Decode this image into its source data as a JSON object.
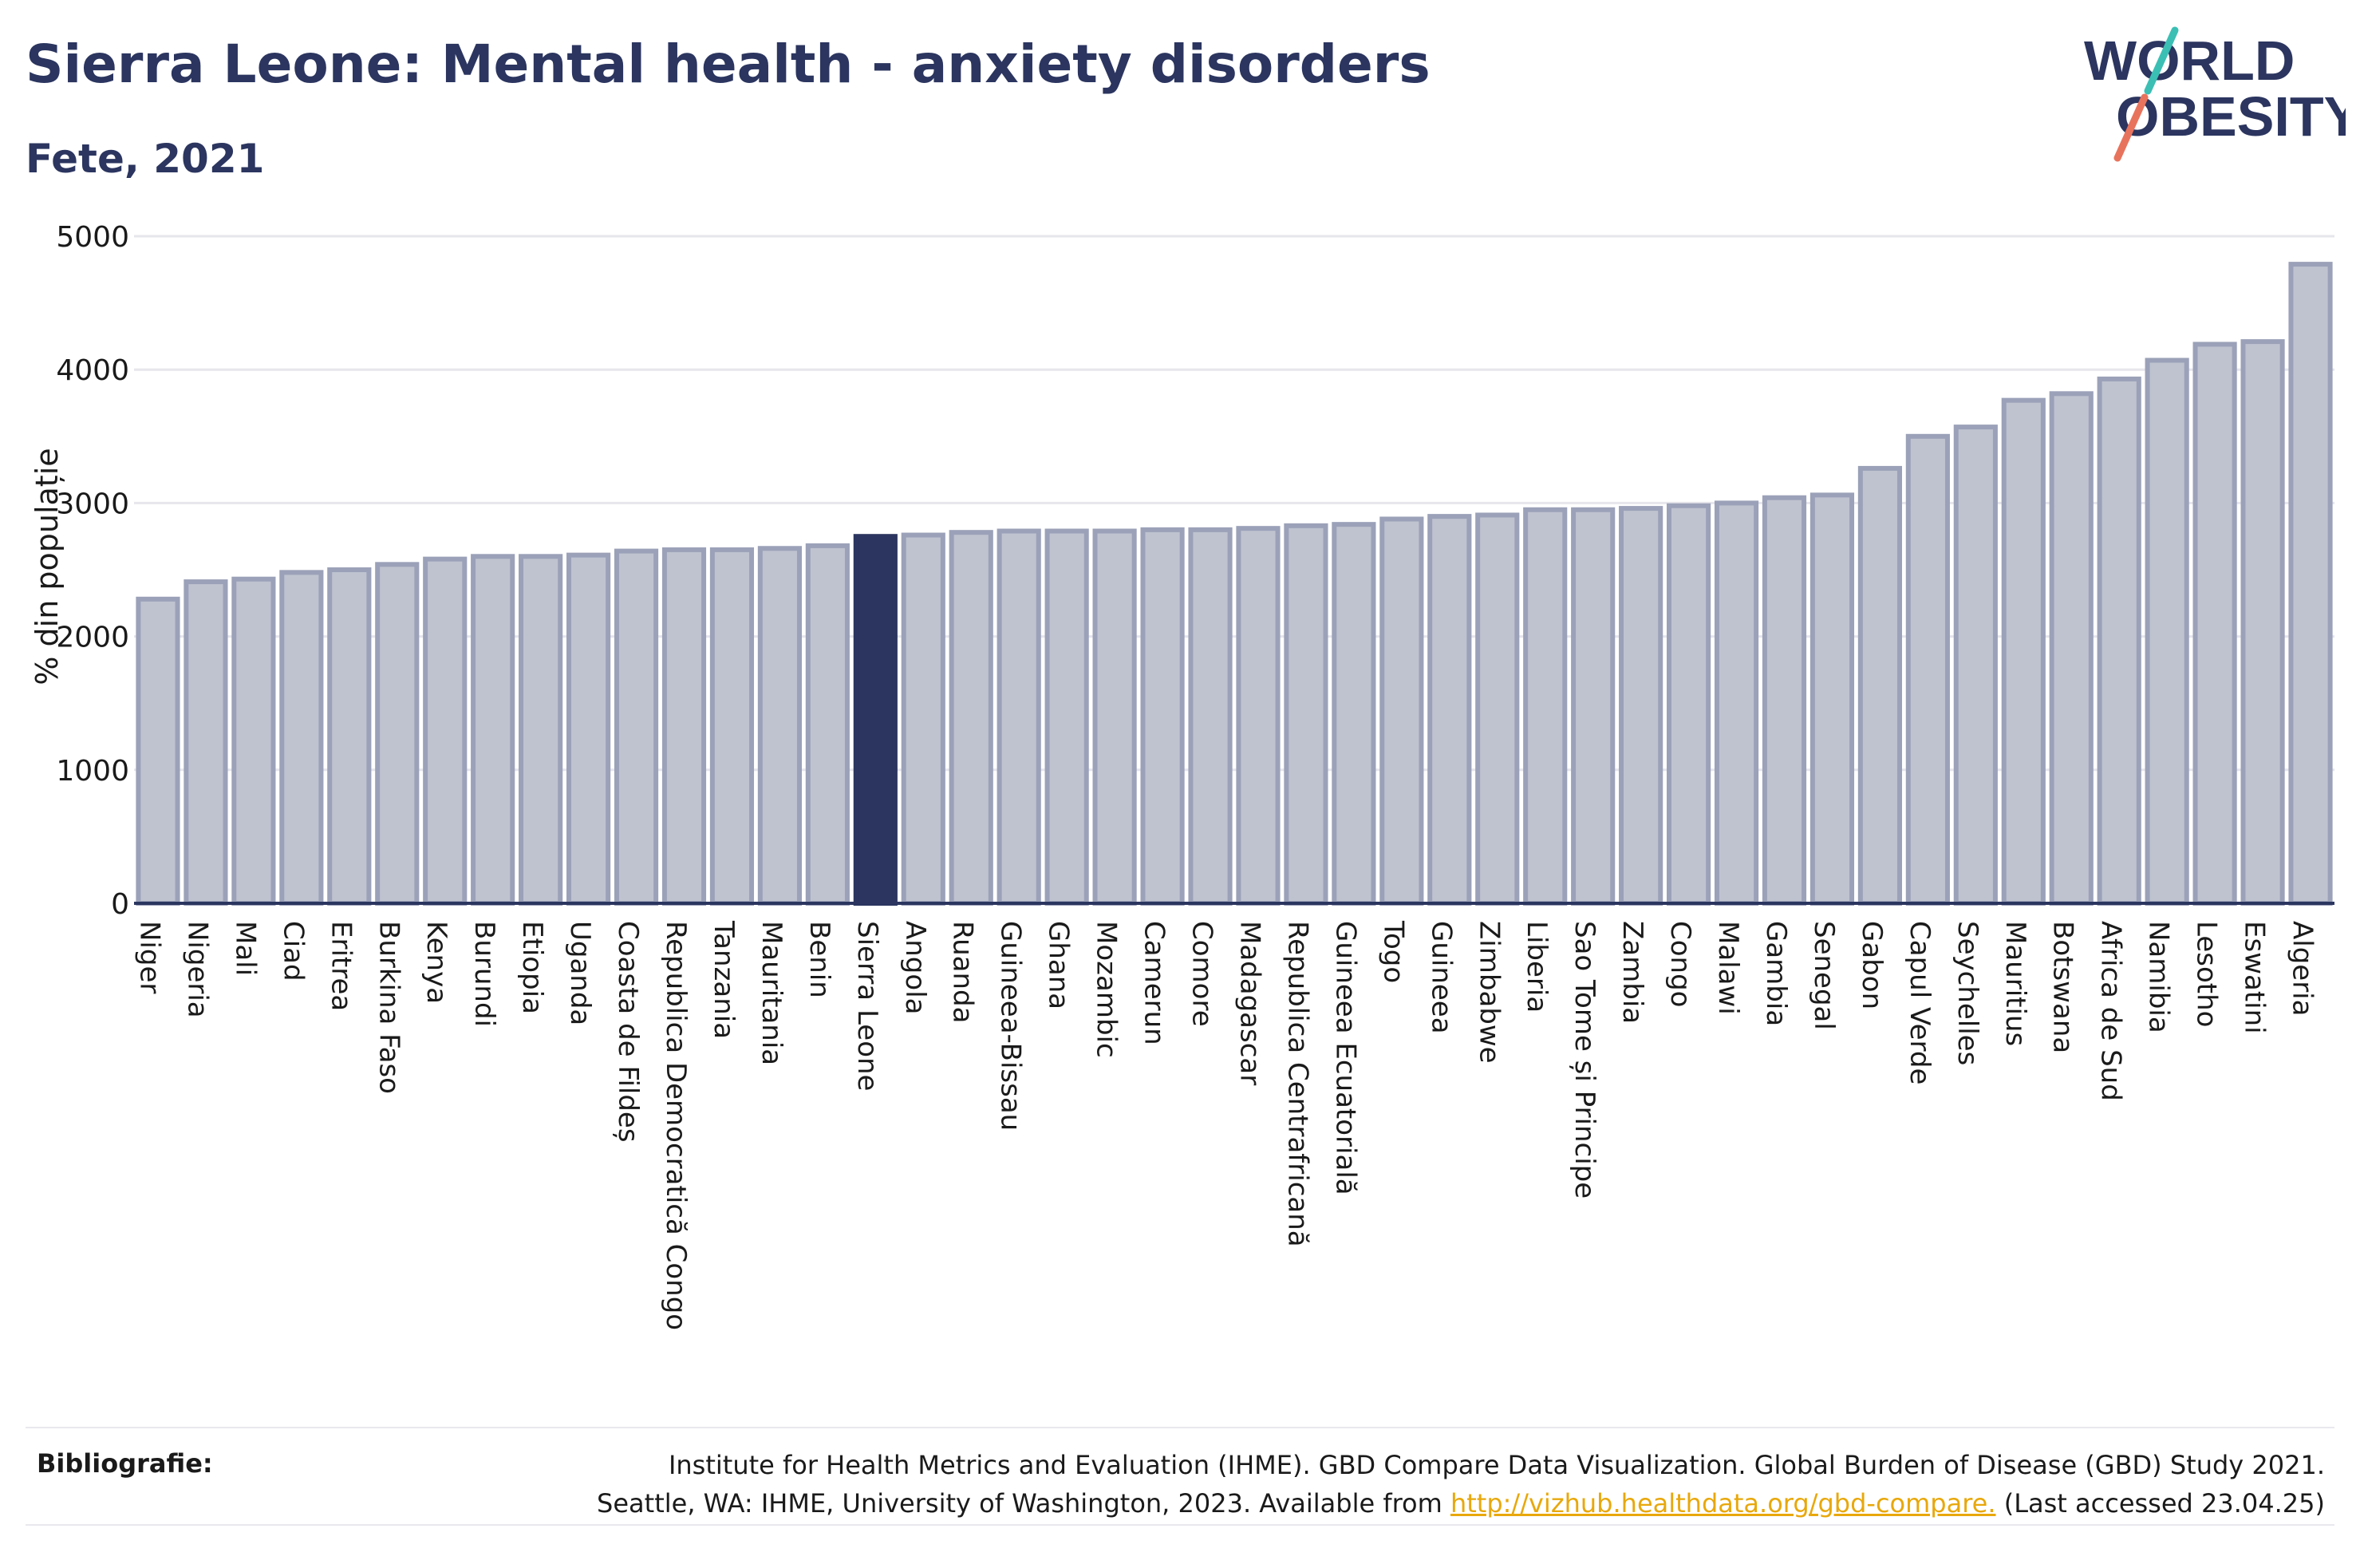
{
  "header": {
    "title": "Sierra Leone: Mental health - anxiety disorders",
    "subtitle": "Fete, 2021"
  },
  "logo": {
    "line1": "WORLD",
    "line2": "OBESITY",
    "colors": {
      "text": "#2b355f",
      "slash_top": "#3bbfb4",
      "slash_bottom": "#e8735c"
    }
  },
  "footer": {
    "label": "Bibliografie:",
    "line1": "Institute for Health Metrics and Evaluation (IHME). GBD Compare Data Visualization. Global Burden of Disease (GBD) Study 2021.",
    "line2_prefix": "Seattle, WA: IHME, University of Washington, 2023. Available from",
    "link": "http://vizhub.healthdata.org/gbd-compare.",
    "line2_suffix": "(Last accessed 23.04.25)"
  },
  "chart_data": {
    "type": "bar",
    "ylabel": "% din populație",
    "ylim": [
      0,
      5000
    ],
    "yticks": [
      0,
      1000,
      2000,
      3000,
      4000,
      5000
    ],
    "grid": true,
    "highlight": "Sierra Leone",
    "colors": {
      "bar": "#bfc3d0",
      "bar_edge": "#9ba1b8",
      "highlight": "#2b355f",
      "axis": "#2b355f",
      "grid": "#e6e6ec"
    },
    "categories": [
      "Niger",
      "Nigeria",
      "Mali",
      "Ciad",
      "Eritrea",
      "Burkina Faso",
      "Kenya",
      "Burundi",
      "Etiopia",
      "Uganda",
      "Coasta de Fildeș",
      "Republica Democratică Congo",
      "Tanzania",
      "Mauritania",
      "Benin",
      "Sierra Leone",
      "Angola",
      "Ruanda",
      "Guineea-Bissau",
      "Ghana",
      "Mozambic",
      "Camerun",
      "Comore",
      "Madagascar",
      "Republica Centrafricană",
      "Guineea Ecuatorială",
      "Togo",
      "Guineea",
      "Zimbabwe",
      "Liberia",
      "Sao Tome și Principe",
      "Zambia",
      "Congo",
      "Malawi",
      "Gambia",
      "Senegal",
      "Gabon",
      "Capul Verde",
      "Seychelles",
      "Mauritius",
      "Botswana",
      "Africa de Sud",
      "Namibia",
      "Lesotho",
      "Eswatini",
      "Algeria"
    ],
    "values": [
      2280,
      2410,
      2430,
      2480,
      2500,
      2540,
      2580,
      2600,
      2600,
      2610,
      2640,
      2650,
      2650,
      2660,
      2680,
      2750,
      2760,
      2780,
      2790,
      2790,
      2790,
      2800,
      2800,
      2810,
      2830,
      2840,
      2880,
      2900,
      2910,
      2950,
      2950,
      2960,
      2980,
      3000,
      3040,
      3060,
      3260,
      3500,
      3570,
      3770,
      3820,
      3930,
      4070,
      4190,
      4210,
      4790
    ]
  }
}
